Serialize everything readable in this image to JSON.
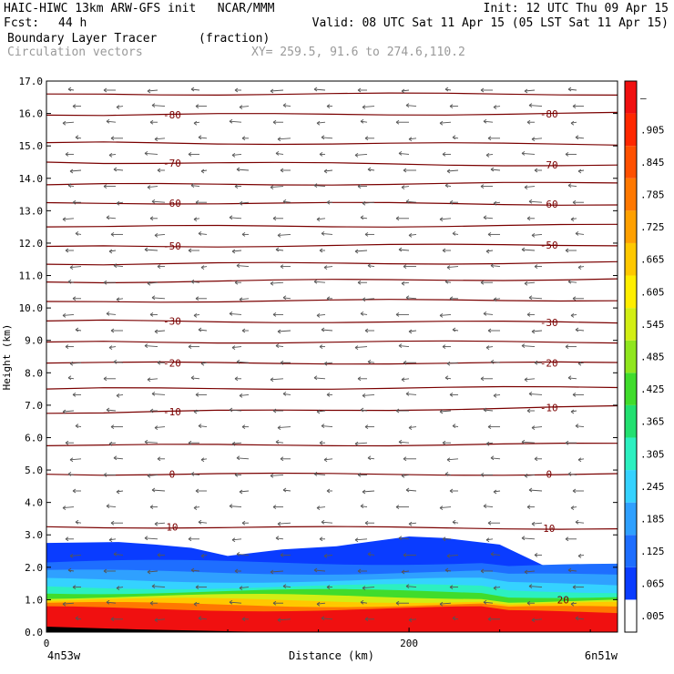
{
  "header": {
    "line1_left": "HAIC-HIWC 13km ARW-GFS init   NCAR/MMM",
    "line1_right": "Init: 12 UTC Thu 09 Apr 15",
    "fcst_label": "Fcst:",
    "fcst_value": "44 h",
    "valid": "Valid: 08 UTC Sat 11 Apr 15 (05 LST Sat 11 Apr 15)",
    "field_name": "Boundary Layer Tracer",
    "field_units": "(fraction)",
    "vector_name": "Circulation vectors",
    "xy_text": "XY= 259.5, 91.6 to 274.6,110.2"
  },
  "chart_data": {
    "type": "heatmap",
    "ylabel": "Height (km)",
    "xlabel": "Distance (km)",
    "x_left_label": "4n53w",
    "x_right_label": "6n51w",
    "ylim": [
      0,
      17
    ],
    "xlim": [
      0,
      315
    ],
    "y_ticks": [
      "0.0",
      "1.0",
      "2.0",
      "3.0",
      "4.0",
      "5.0",
      "6.0",
      "7.0",
      "8.0",
      "9.0",
      "10.0",
      "11.0",
      "12.0",
      "13.0",
      "14.0",
      "15.0",
      "16.0",
      "17.0"
    ],
    "x_ticks": [
      "0",
      "200"
    ],
    "x_tick_values": [
      0,
      200
    ],
    "colorbar_labels": [
      ".005",
      ".065",
      ".125",
      ".185",
      ".245",
      ".305",
      ".365",
      ".425",
      ".485",
      ".545",
      ".605",
      ".665",
      ".725",
      ".785",
      ".845",
      ".905",
      "–"
    ],
    "colorbar_colors": [
      "#ffffff",
      "#0a3cff",
      "#1e6eff",
      "#2fa0ff",
      "#35d2ff",
      "#2cf0c0",
      "#22e070",
      "#40dc2c",
      "#90e61e",
      "#d2ee14",
      "#ffee00",
      "#ffc800",
      "#ffa000",
      "#ff7800",
      "#ff5000",
      "#ff2800",
      "#f01010"
    ],
    "tracer_top_km": [
      [
        0,
        2.75
      ],
      [
        40,
        2.78
      ],
      [
        60,
        2.7
      ],
      [
        80,
        2.6
      ],
      [
        100,
        2.35
      ],
      [
        130,
        2.55
      ],
      [
        160,
        2.65
      ],
      [
        180,
        2.8
      ],
      [
        200,
        2.95
      ],
      [
        220,
        2.9
      ],
      [
        250,
        2.7
      ],
      [
        265,
        2.3
      ],
      [
        280,
        1.9
      ],
      [
        300,
        1.8
      ],
      [
        315,
        1.75
      ]
    ],
    "tracer_band_tops_km": [
      1.75,
      1.45,
      1.2,
      0.95,
      0.72
    ],
    "isotherms": [
      {
        "label": "10",
        "y_left": 3.25,
        "y_right": 3.2
      },
      {
        "label": "0",
        "y_left": 4.87,
        "y_right": 4.87
      },
      {
        "label": "-10",
        "y_left": 6.75,
        "y_right": 6.95
      },
      {
        "label": "-20",
        "y_left": 8.3,
        "y_right": 8.3
      },
      {
        "label": "-30",
        "y_left": 9.6,
        "y_right": 9.55
      },
      {
        "label": "-50",
        "y_left": 11.9,
        "y_right": 11.95
      },
      {
        "label": "-60",
        "y_left": 13.25,
        "y_right": 13.2
      },
      {
        "label": "-70",
        "y_left": 14.5,
        "y_right": 14.4
      },
      {
        "label": "-80",
        "y_left": 15.95,
        "y_right": 16.0
      },
      {
        "label": "",
        "y_left": 5.75,
        "y_right": 5.8
      },
      {
        "label": "",
        "y_left": 7.5,
        "y_right": 7.55
      },
      {
        "label": "",
        "y_left": 8.95,
        "y_right": 8.95
      },
      {
        "label": "",
        "y_left": 10.2,
        "y_right": 10.25
      },
      {
        "label": "",
        "y_left": 10.8,
        "y_right": 10.9
      },
      {
        "label": "",
        "y_left": 11.35,
        "y_right": 11.4
      },
      {
        "label": "",
        "y_left": 12.5,
        "y_right": 12.55
      },
      {
        "label": "",
        "y_left": 13.8,
        "y_right": 13.85
      },
      {
        "label": "",
        "y_left": 15.1,
        "y_right": 15.05
      },
      {
        "label": "",
        "y_left": 16.6,
        "y_right": 16.6
      }
    ],
    "bottom_contour_label": "20",
    "vectors": "westward flow throughout the column (easterlies)",
    "grid": false
  }
}
